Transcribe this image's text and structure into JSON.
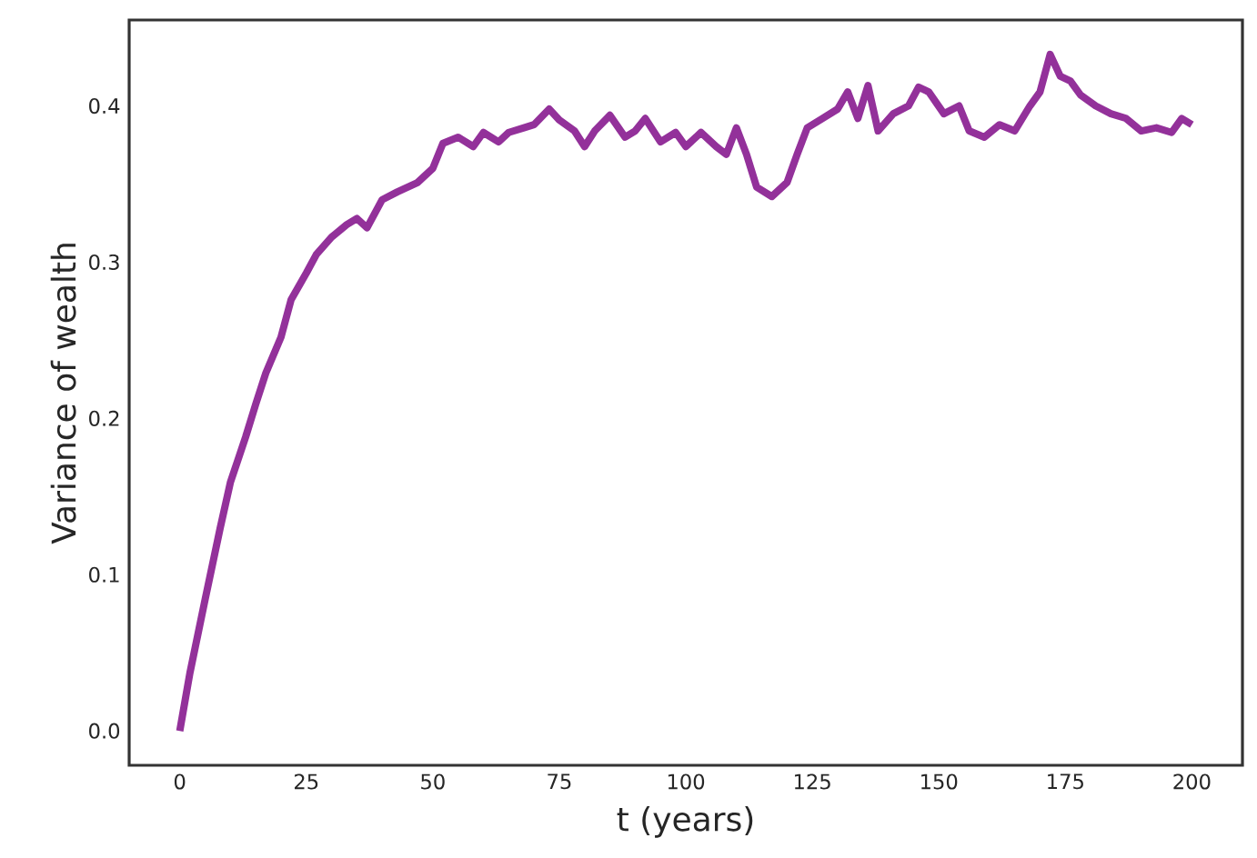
{
  "chart_data": {
    "type": "line",
    "xlabel": "t (years)",
    "ylabel": "Variance of wealth",
    "xlim": [
      -10,
      210
    ],
    "ylim": [
      -0.022,
      0.455
    ],
    "xticks": [
      0,
      25,
      50,
      75,
      100,
      125,
      150,
      175,
      200
    ],
    "yticks": [
      {
        "value": 0,
        "label": "0.0"
      },
      {
        "value": 0.1,
        "label": "0.1"
      },
      {
        "value": 0.2,
        "label": "0.2"
      },
      {
        "value": 0.3,
        "label": "0.3"
      },
      {
        "value": 0.4,
        "label": "0.4"
      }
    ],
    "marker": "none",
    "line_style": "solid",
    "series": [
      {
        "color": "#93319a",
        "x": [
          0,
          2,
          5,
          8,
          10,
          13,
          15,
          17,
          20,
          22,
          25,
          27,
          30,
          33,
          35,
          37,
          40,
          43,
          47,
          50,
          52,
          55,
          58,
          60,
          63,
          65,
          68,
          70,
          73,
          75,
          78,
          80,
          82,
          85,
          88,
          90,
          92,
          95,
          98,
          100,
          103,
          106,
          108,
          110,
          112,
          114,
          117,
          120,
          122,
          124,
          127,
          130,
          132,
          134,
          136,
          138,
          141,
          144,
          146,
          148,
          151,
          154,
          156,
          159,
          162,
          165,
          168,
          170,
          172,
          174,
          176,
          178,
          181,
          184,
          187,
          190,
          193,
          196,
          198,
          200
        ],
        "values": [
          0,
          0.037,
          0.084,
          0.13,
          0.159,
          0.188,
          0.209,
          0.229,
          0.252,
          0.276,
          0.293,
          0.305,
          0.316,
          0.324,
          0.328,
          0.322,
          0.34,
          0.345,
          0.351,
          0.36,
          0.376,
          0.38,
          0.374,
          0.383,
          0.377,
          0.383,
          0.386,
          0.388,
          0.398,
          0.391,
          0.384,
          0.374,
          0.384,
          0.394,
          0.38,
          0.384,
          0.392,
          0.377,
          0.383,
          0.374,
          0.383,
          0.374,
          0.369,
          0.386,
          0.369,
          0.348,
          0.342,
          0.351,
          0.369,
          0.386,
          0.392,
          0.398,
          0.409,
          0.392,
          0.413,
          0.384,
          0.395,
          0.4,
          0.412,
          0.409,
          0.395,
          0.4,
          0.384,
          0.38,
          0.388,
          0.384,
          0.4,
          0.409,
          0.433,
          0.419,
          0.416,
          0.407,
          0.4,
          0.395,
          0.392,
          0.384,
          0.386,
          0.383,
          0.392,
          0.388
        ]
      }
    ]
  }
}
